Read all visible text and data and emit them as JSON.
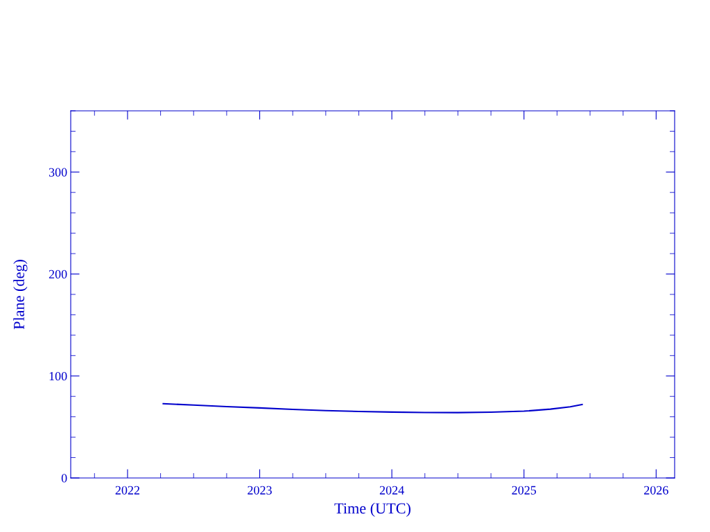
{
  "chart_data": {
    "type": "line",
    "xlabel": "Time (UTC)",
    "ylabel": "Plane (deg)",
    "x": [
      2022.27,
      2022.5,
      2022.75,
      2023.0,
      2023.25,
      2023.5,
      2023.75,
      2024.0,
      2024.25,
      2024.5,
      2024.75,
      2025.0,
      2025.2,
      2025.35,
      2025.44
    ],
    "series": [
      {
        "color": "#0000cc",
        "values": [
          72.8,
          71.5,
          70.0,
          68.7,
          67.3,
          66.1,
          65.2,
          64.6,
          64.2,
          64.1,
          64.5,
          65.5,
          67.5,
          69.8,
          72.0
        ]
      }
    ],
    "xlim": [
      2021.57,
      2026.14
    ],
    "xticks": [
      2022,
      2023,
      2024,
      2025,
      2026
    ],
    "ylim": [
      0,
      360
    ],
    "yticks": [
      0,
      100,
      200,
      300
    ],
    "grid": false,
    "marker": "none",
    "line_style": "solid"
  }
}
